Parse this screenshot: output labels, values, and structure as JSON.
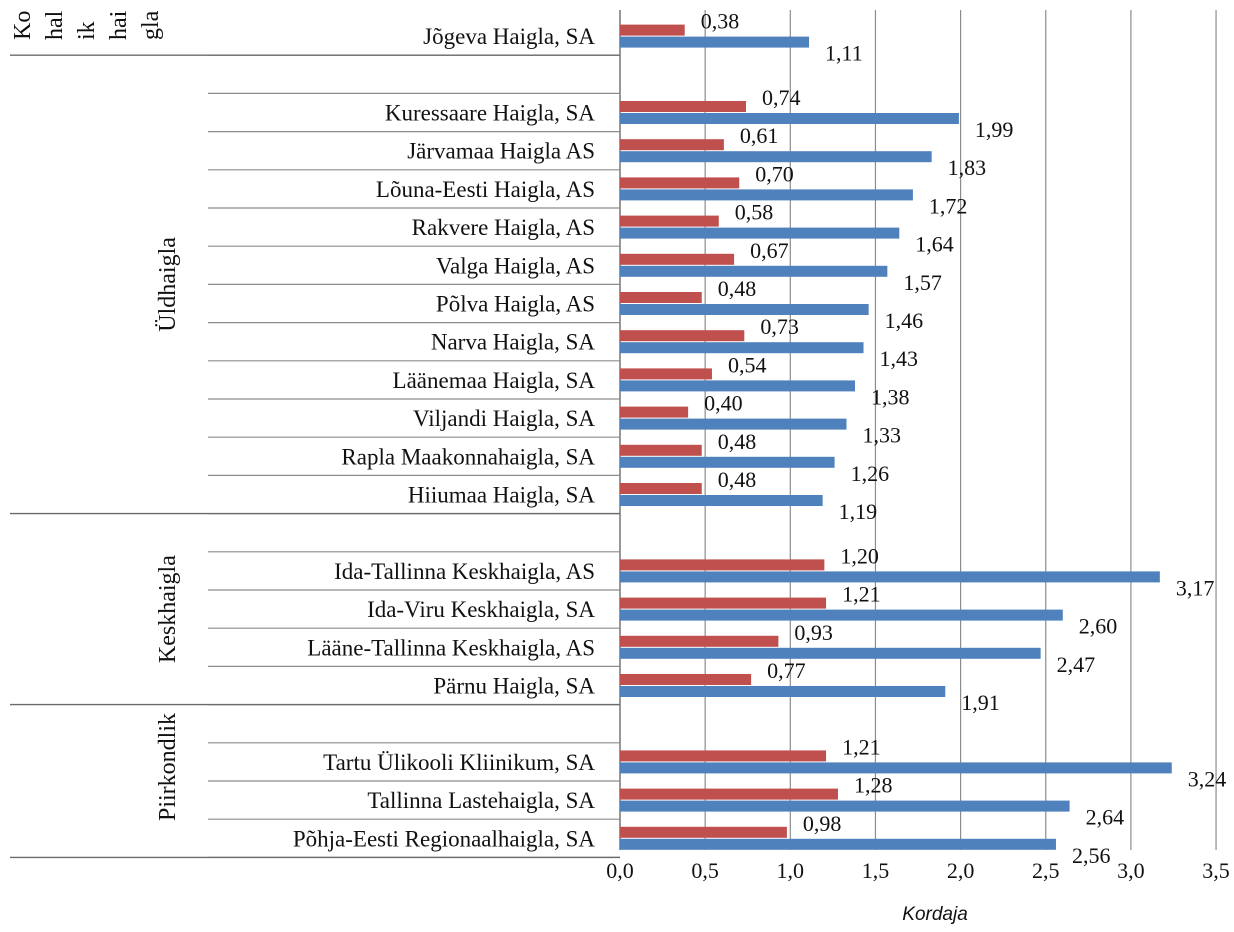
{
  "chart_data": {
    "type": "bar",
    "orientation": "horizontal",
    "xlabel": "Kordaja",
    "xlim": [
      0,
      3.5
    ],
    "x_ticks": [
      "0,0",
      "0,5",
      "1,0",
      "1,5",
      "2,0",
      "2,5",
      "3,0",
      "3,5"
    ],
    "grid": "vertical",
    "series": [
      {
        "color": "#c0504d"
      },
      {
        "color": "#4f81bd"
      }
    ],
    "groups": [
      {
        "label_lines": [
          "Ko",
          "hal",
          "ik",
          "hai",
          "gla"
        ],
        "categories": [
          {
            "label": "Jõgeva Haigla, SA",
            "red": 0.38,
            "blue": 1.11,
            "red_label": "0,38",
            "blue_label": "1,11"
          }
        ]
      },
      {
        "label": "Üldhaigla",
        "categories": [
          {
            "label": "Kuressaare Haigla, SA",
            "red": 0.74,
            "blue": 1.99,
            "red_label": "0,74",
            "blue_label": "1,99"
          },
          {
            "label": "Järvamaa Haigla AS",
            "red": 0.61,
            "blue": 1.83,
            "red_label": "0,61",
            "blue_label": "1,83"
          },
          {
            "label": "Lõuna-Eesti Haigla, AS",
            "red": 0.7,
            "blue": 1.72,
            "red_label": "0,70",
            "blue_label": "1,72"
          },
          {
            "label": "Rakvere Haigla, AS",
            "red": 0.58,
            "blue": 1.64,
            "red_label": "0,58",
            "blue_label": "1,64"
          },
          {
            "label": "Valga Haigla, AS",
            "red": 0.67,
            "blue": 1.57,
            "red_label": "0,67",
            "blue_label": "1,57"
          },
          {
            "label": "Põlva Haigla, AS",
            "red": 0.48,
            "blue": 1.46,
            "red_label": "0,48",
            "blue_label": "1,46"
          },
          {
            "label": "Narva Haigla, SA",
            "red": 0.73,
            "blue": 1.43,
            "red_label": "0,73",
            "blue_label": "1,43"
          },
          {
            "label": "Läänemaa Haigla, SA",
            "red": 0.54,
            "blue": 1.38,
            "red_label": "0,54",
            "blue_label": "1,38"
          },
          {
            "label": "Viljandi Haigla, SA",
            "red": 0.4,
            "blue": 1.33,
            "red_label": "0,40",
            "blue_label": "1,33"
          },
          {
            "label": "Rapla Maakonnahaigla, SA",
            "red": 0.48,
            "blue": 1.26,
            "red_label": "0,48",
            "blue_label": "1,26"
          },
          {
            "label": "Hiiumaa Haigla, SA",
            "red": 0.48,
            "blue": 1.19,
            "red_label": "0,48",
            "blue_label": "1,19"
          }
        ]
      },
      {
        "label": "Keskhaigla",
        "categories": [
          {
            "label": "Ida-Tallinna Keskhaigla, AS",
            "red": 1.2,
            "blue": 3.17,
            "red_label": "1,20",
            "blue_label": "3,17"
          },
          {
            "label": "Ida-Viru Keskhaigla, SA",
            "red": 1.21,
            "blue": 2.6,
            "red_label": "1,21",
            "blue_label": "2,60"
          },
          {
            "label": "Lääne-Tallinna Keskhaigla, AS",
            "red": 0.93,
            "blue": 2.47,
            "red_label": "0,93",
            "blue_label": "2,47"
          },
          {
            "label": "Pärnu Haigla, SA",
            "red": 0.77,
            "blue": 1.91,
            "red_label": "0,77",
            "blue_label": "1,91"
          }
        ]
      },
      {
        "label": "Piirkondlik",
        "categories": [
          {
            "label": "Tartu Ülikooli Kliinikum, SA",
            "red": 1.21,
            "blue": 3.24,
            "red_label": "1,21",
            "blue_label": "3,24"
          },
          {
            "label": "Tallinna Lastehaigla, SA",
            "red": 1.28,
            "blue": 2.64,
            "red_label": "1,28",
            "blue_label": "2,64"
          },
          {
            "label": "Põhja-Eesti Regionaalhaigla, SA",
            "red": 0.98,
            "blue": 2.56,
            "red_label": "0,98",
            "blue_label": "2,56"
          }
        ]
      }
    ]
  }
}
